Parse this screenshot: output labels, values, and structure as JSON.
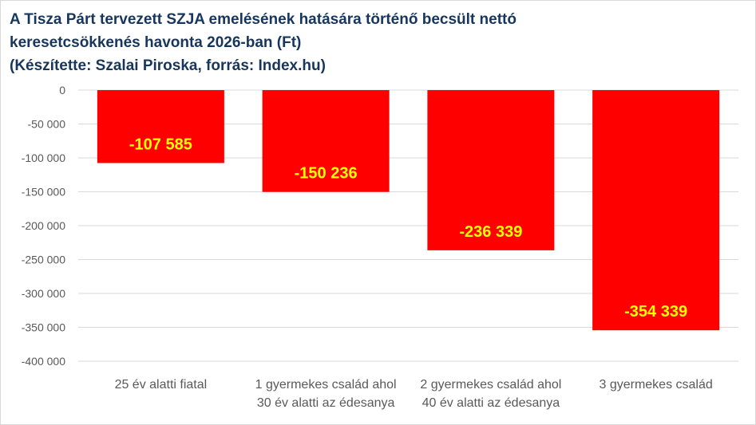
{
  "title_lines": [
    "A Tisza Párt tervezett SZJA emelésének hatására  történő becsült nettó",
    "keresetcsökkenés havonta 2026-ban (Ft)",
    "(Készítette: Szalai Piroska, forrás: Index.hu)"
  ],
  "colors": {
    "bar": "#ff0000",
    "data_label": "#ffff00",
    "title": "#17365d",
    "gridline": "#d9d9d9",
    "axis_text": "#595959"
  },
  "chart_data": {
    "type": "bar",
    "title": "A Tisza Párt tervezett SZJA emelésének hatására  történő becsült nettó keresetcsökkenés havonta 2026-ban (Ft) (Készítette: Szalai Piroska, forrás: Index.hu)",
    "categories": [
      [
        "25 év alatti fiatal"
      ],
      [
        "1 gyermekes család ahol",
        "30 év alatti az édesanya"
      ],
      [
        "2 gyermekes család ahol",
        "40 év alatti az édesanya"
      ],
      [
        "3 gyermekes család"
      ]
    ],
    "values": [
      -107585,
      -150236,
      -236339,
      -354339
    ],
    "value_labels": [
      "-107 585",
      "-150 236",
      "-236 339",
      "-354 339"
    ],
    "ylim": [
      -400000,
      0
    ],
    "yticks": [
      0,
      -50000,
      -100000,
      -150000,
      -200000,
      -250000,
      -300000,
      -350000,
      -400000
    ],
    "ytick_labels": [
      "0",
      "-50 000",
      "-100 000",
      "-150 000",
      "-200 000",
      "-250 000",
      "-300 000",
      "-350 000",
      "-400 000"
    ],
    "xlabel": "",
    "ylabel": "",
    "grid": true,
    "legend": "none"
  }
}
